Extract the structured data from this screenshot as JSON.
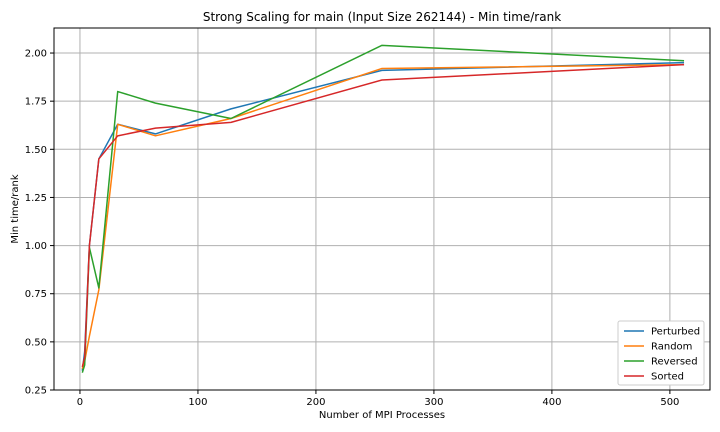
{
  "chart_data": {
    "type": "line",
    "title": "Strong Scaling for main (Input Size 262144) - Min time/rank",
    "xlabel": "Number of MPI Processes",
    "ylabel": "Min time/rank",
    "xlim": [
      -22,
      534
    ],
    "ylim": [
      0.25,
      2.13
    ],
    "xticks": [
      0,
      100,
      200,
      300,
      400,
      500
    ],
    "yticks": [
      0.25,
      0.5,
      0.75,
      1.0,
      1.25,
      1.5,
      1.75,
      2.0
    ],
    "ytick_labels": [
      "0.25",
      "0.50",
      "0.75",
      "1.00",
      "1.25",
      "1.50",
      "1.75",
      "2.00"
    ],
    "grid": true,
    "legend_position": "lower-right",
    "x": [
      2,
      4,
      8,
      16,
      32,
      64,
      128,
      256,
      512
    ],
    "series": [
      {
        "name": "Perturbed",
        "color": "#1f77b4",
        "values": [
          0.35,
          0.45,
          1.0,
          1.45,
          1.63,
          1.58,
          1.71,
          1.91,
          1.95
        ]
      },
      {
        "name": "Random",
        "color": "#ff7f0e",
        "values": [
          0.36,
          0.4,
          0.53,
          0.77,
          1.63,
          1.57,
          1.66,
          1.92,
          1.94
        ]
      },
      {
        "name": "Reversed",
        "color": "#2ca02c",
        "values": [
          0.34,
          0.38,
          0.99,
          0.78,
          1.8,
          1.74,
          1.66,
          2.04,
          1.96
        ]
      },
      {
        "name": "Sorted",
        "color": "#d62728",
        "values": [
          0.37,
          0.42,
          1.0,
          1.45,
          1.57,
          1.61,
          1.64,
          1.86,
          1.94
        ]
      }
    ]
  }
}
